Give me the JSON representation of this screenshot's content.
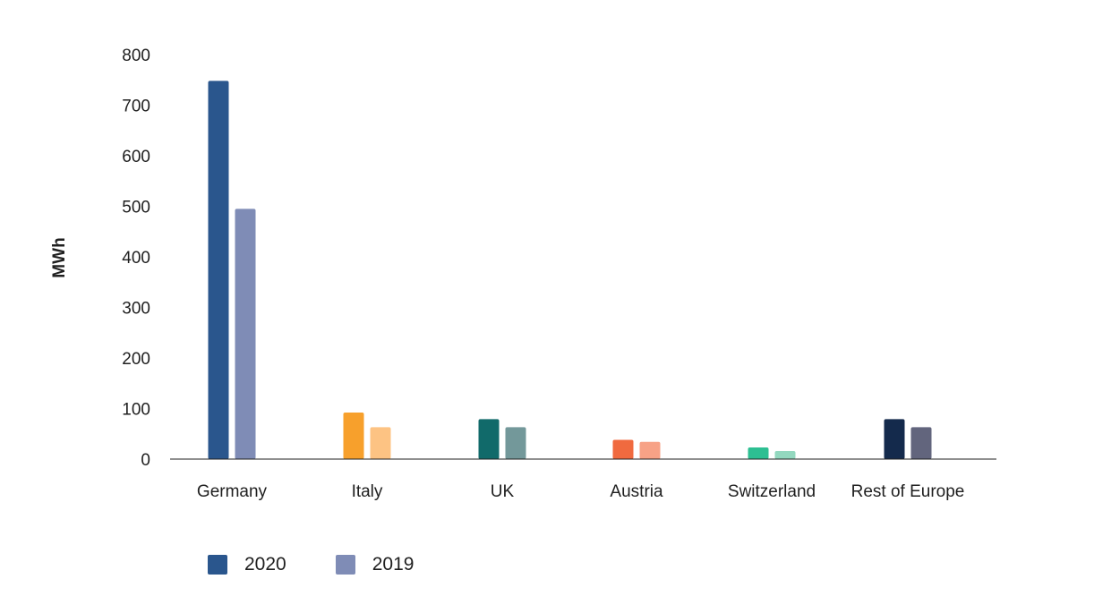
{
  "chart_data": {
    "type": "bar",
    "ylabel": "MWh",
    "ylim": [
      0,
      800
    ],
    "yticks": [
      0,
      100,
      200,
      300,
      400,
      500,
      600,
      700,
      800
    ],
    "categories": [
      "Germany",
      "Italy",
      "UK",
      "Austria",
      "Switzerland",
      "Rest of Europe"
    ],
    "series": [
      {
        "name": "2020",
        "values": [
          748,
          92,
          79,
          38,
          23,
          79
        ],
        "colors": [
          "#2a568d",
          "#f7a02c",
          "#116a6a",
          "#f06a3f",
          "#2dbf92",
          "#142a4c"
        ]
      },
      {
        "name": "2019",
        "values": [
          495,
          63,
          63,
          34,
          16,
          63
        ],
        "colors": [
          "#7f8cb6",
          "#fdc383",
          "#73989a",
          "#f7a286",
          "#93d8bf",
          "#62657d"
        ]
      }
    ],
    "legend_position": "bottom-left",
    "grid": false
  },
  "legend": [
    {
      "label": "2020",
      "color": "#2a568d"
    },
    {
      "label": "2019",
      "color": "#7f8cb6"
    }
  ]
}
